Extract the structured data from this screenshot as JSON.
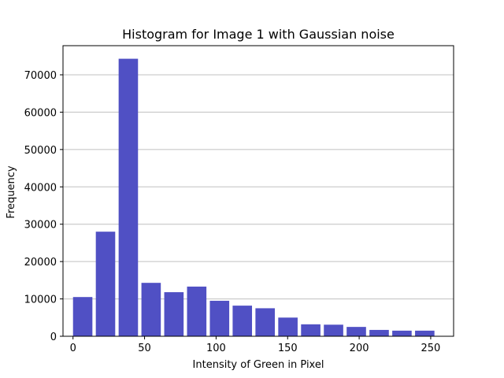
{
  "chart_data": {
    "type": "bar",
    "title": "Histogram for Image 1 with Gaussian noise",
    "xlabel": "Intensity of Green in Pixel",
    "ylabel": "Frequency",
    "xlim": [
      -7,
      266
    ],
    "ylim": [
      0,
      77800
    ],
    "bin_width": 15.94,
    "bar_width_fraction": 0.85,
    "grid": "y",
    "bar_color": "#5050c4",
    "x_ticks": [
      0,
      50,
      100,
      150,
      200,
      250
    ],
    "y_ticks": [
      0,
      10000,
      20000,
      30000,
      40000,
      50000,
      60000,
      70000
    ],
    "x_tick_labels": [
      "0",
      "50",
      "100",
      "150",
      "200",
      "250"
    ],
    "y_tick_labels": [
      "0",
      "10000",
      "20000",
      "30000",
      "40000",
      "50000",
      "60000",
      "70000"
    ],
    "bins": [
      0,
      15.94,
      31.88,
      47.81,
      63.75,
      79.69,
      95.63,
      111.56,
      127.5,
      143.44,
      159.38,
      175.31,
      191.25,
      207.19,
      223.13,
      239.06
    ],
    "values": [
      10500,
      28000,
      74300,
      14300,
      11800,
      13300,
      9500,
      8200,
      7500,
      5000,
      3200,
      3100,
      2500,
      1700,
      1500,
      1500
    ]
  }
}
